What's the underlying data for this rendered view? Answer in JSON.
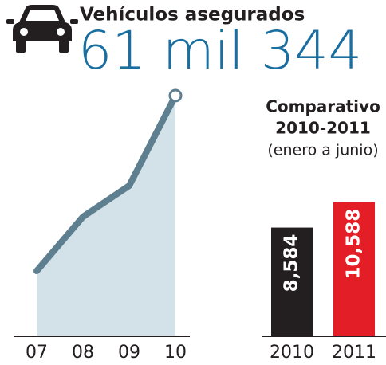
{
  "header": {
    "title": "Vehículos asegurados",
    "total": "61 mil 344"
  },
  "chart_data": [
    {
      "type": "area",
      "categories": [
        "07",
        "08",
        "09",
        "10"
      ],
      "values": [
        16650,
        30470,
        38390,
        61344
      ],
      "ylim": [
        0,
        61344
      ],
      "color": "#5e7f8f",
      "fill": "#d3e1e8"
    },
    {
      "type": "bar",
      "title": "Comparativo",
      "subtitle": "2010-2011",
      "note": "(enero a junio)",
      "categories": [
        "2010",
        "2011"
      ],
      "values": [
        8584,
        10588
      ],
      "value_labels": [
        "8,584",
        "10,588"
      ],
      "colors": [
        "#231f20",
        "#e31e26"
      ],
      "ylim": [
        0,
        19000
      ]
    }
  ]
}
